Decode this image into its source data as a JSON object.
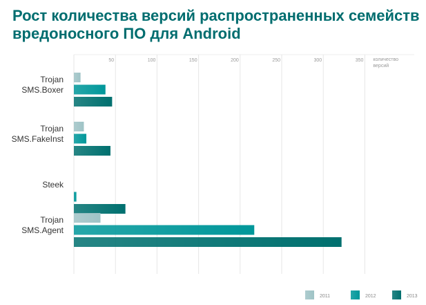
{
  "chart_data": {
    "type": "bar",
    "orientation": "horizontal",
    "title": "Рост количества версий распространенных семейств вредоносного ПО для Android",
    "xlabel": "количество версий",
    "xticks": [
      50,
      100,
      150,
      200,
      250,
      300,
      350
    ],
    "xlim": [
      0,
      375
    ],
    "grid": true,
    "legend_position": "bottom-right",
    "categories": [
      [
        "Trojan",
        "SMS.Boxer"
      ],
      [
        "Trojan",
        "SMS.FakeInst"
      ],
      [
        "Steek"
      ],
      [
        "Trojan",
        "SMS.Agent"
      ]
    ],
    "series": [
      {
        "name": "2011",
        "color": "#9fc3c6",
        "values": [
          8,
          12,
          0,
          32
        ]
      },
      {
        "name": "2012",
        "color": "#00979a",
        "values": [
          38,
          15,
          3,
          217
        ]
      },
      {
        "name": "2013",
        "color": "#00706f",
        "values": [
          46,
          44,
          62,
          322
        ]
      }
    ]
  }
}
